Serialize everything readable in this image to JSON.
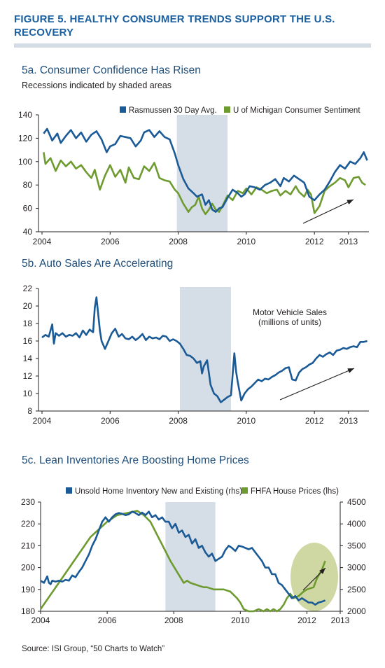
{
  "figure_title": "FIGURE 5. HEALTHY CONSUMER TRENDS SUPPORT THE U.S. RECOVERY",
  "source_text": "Source: ISI Group, “50 Charts to Watch”",
  "colors": {
    "blue": "#1a5a96",
    "green": "#6e9b2f",
    "recession": "#d5dde6",
    "ellipse": "#cfd7a2",
    "title": "#1a5fa0",
    "subtitle": "#1f4e79"
  },
  "chart_data": [
    {
      "id": "5a",
      "type": "line",
      "title": "5a. Consumer Confidence Has Risen",
      "subtitle": "Recessions indicated by shaded areas",
      "xlim": [
        2004,
        2013.6
      ],
      "ylim": [
        40,
        140
      ],
      "yticks": [
        40,
        60,
        80,
        100,
        120,
        140
      ],
      "xticks": [
        2004,
        2006,
        2008,
        2010,
        2012,
        2013
      ],
      "xtick_labels": [
        "2004",
        "2006",
        "2008",
        "2010",
        "2012",
        "2013"
      ],
      "recession": [
        2007.96,
        2009.45
      ],
      "legend_position": "top-right",
      "series": [
        {
          "name": "Rasmussen 30 Day Avg.",
          "color": "#1a5a96",
          "x": [
            2004.05,
            2004.15,
            2004.3,
            2004.45,
            2004.55,
            2004.7,
            2004.85,
            2005.0,
            2005.15,
            2005.3,
            2005.45,
            2005.6,
            2005.75,
            2005.9,
            2006.0,
            2006.15,
            2006.3,
            2006.45,
            2006.6,
            2006.75,
            2006.9,
            2007.0,
            2007.15,
            2007.3,
            2007.45,
            2007.6,
            2007.75,
            2007.9,
            2008.0,
            2008.15,
            2008.3,
            2008.45,
            2008.55,
            2008.7,
            2008.8,
            2008.9,
            2009.0,
            2009.1,
            2009.2,
            2009.3,
            2009.45,
            2009.6,
            2009.75,
            2009.85,
            2009.95,
            2010.1,
            2010.25,
            2010.4,
            2010.55,
            2010.7,
            2010.85,
            2011.0,
            2011.1,
            2011.25,
            2011.4,
            2011.55,
            2011.7,
            2011.85,
            2012.0,
            2012.15,
            2012.3,
            2012.45,
            2012.6,
            2012.75,
            2012.9,
            2013.05,
            2013.2,
            2013.35,
            2013.45,
            2013.55
          ],
          "values": [
            124,
            128,
            118,
            124,
            116,
            122,
            127,
            120,
            125,
            117,
            123,
            126,
            119,
            108,
            113,
            115,
            122,
            121,
            120,
            113,
            118,
            125,
            127,
            121,
            126,
            121,
            119,
            107,
            97,
            85,
            77,
            73,
            70,
            72,
            63,
            67,
            59,
            57,
            60,
            61,
            69,
            76,
            73,
            70,
            72,
            79,
            78,
            76,
            80,
            82,
            85,
            79,
            86,
            83,
            88,
            85,
            82,
            70,
            67,
            72,
            76,
            83,
            91,
            97,
            94,
            100,
            98,
            103,
            108,
            101
          ]
        },
        {
          "name": "U of Michigan Consumer Sentiment",
          "color": "#6e9b2f",
          "x": [
            2004.05,
            2004.1,
            2004.25,
            2004.4,
            2004.55,
            2004.7,
            2004.85,
            2005.0,
            2005.15,
            2005.3,
            2005.45,
            2005.55,
            2005.7,
            2005.85,
            2006.0,
            2006.15,
            2006.3,
            2006.45,
            2006.55,
            2006.7,
            2006.85,
            2007.0,
            2007.15,
            2007.3,
            2007.45,
            2007.6,
            2007.75,
            2007.9,
            2008.0,
            2008.15,
            2008.3,
            2008.4,
            2008.5,
            2008.6,
            2008.7,
            2008.8,
            2008.9,
            2009.0,
            2009.1,
            2009.2,
            2009.3,
            2009.45,
            2009.6,
            2009.75,
            2009.9,
            2010.0,
            2010.15,
            2010.3,
            2010.45,
            2010.6,
            2010.75,
            2010.9,
            2011.0,
            2011.15,
            2011.3,
            2011.45,
            2011.55,
            2011.7,
            2011.8,
            2011.9,
            2012.0,
            2012.15,
            2012.3,
            2012.45,
            2012.6,
            2012.75,
            2012.9,
            2013.0,
            2013.15,
            2013.3,
            2013.4,
            2013.5
          ],
          "values": [
            108,
            98,
            103,
            92,
            101,
            96,
            100,
            94,
            97,
            91,
            86,
            93,
            76,
            88,
            97,
            87,
            93,
            82,
            95,
            86,
            85,
            96,
            92,
            99,
            86,
            84,
            83,
            76,
            73,
            64,
            57,
            61,
            63,
            70,
            60,
            55,
            59,
            64,
            59,
            57,
            62,
            71,
            67,
            75,
            73,
            77,
            72,
            78,
            76,
            73,
            75,
            76,
            71,
            75,
            72,
            79,
            74,
            70,
            76,
            72,
            56,
            62,
            75,
            79,
            82,
            86,
            84,
            78,
            86,
            87,
            82,
            80
          ]
        }
      ]
    },
    {
      "id": "5b",
      "type": "line",
      "title": "5b. Auto Sales Are Accelerating",
      "xlim": [
        2004,
        2013.6
      ],
      "ylim": [
        8,
        22
      ],
      "yticks": [
        8,
        10,
        12,
        14,
        16,
        18,
        20,
        22
      ],
      "xticks": [
        2004,
        2006,
        2008,
        2010,
        2012,
        2013
      ],
      "xtick_labels": [
        "2004",
        "2006",
        "2008",
        "2010",
        "2012",
        "2013"
      ],
      "recession": [
        2008.05,
        2009.55
      ],
      "annotation": "Motor Vehicle Sales\n(millions of units)",
      "series": [
        {
          "name": "Motor Vehicle Sales",
          "color": "#1a5a96",
          "x": [
            2004.0,
            2004.1,
            2004.2,
            2004.3,
            2004.35,
            2004.4,
            2004.5,
            2004.6,
            2004.7,
            2004.8,
            2004.9,
            2005.0,
            2005.1,
            2005.2,
            2005.3,
            2005.4,
            2005.5,
            2005.55,
            2005.6,
            2005.7,
            2005.75,
            2005.85,
            2005.95,
            2006.05,
            2006.15,
            2006.25,
            2006.35,
            2006.45,
            2006.55,
            2006.65,
            2006.75,
            2006.85,
            2006.95,
            2007.05,
            2007.15,
            2007.25,
            2007.35,
            2007.45,
            2007.55,
            2007.65,
            2007.75,
            2007.85,
            2007.95,
            2008.05,
            2008.15,
            2008.25,
            2008.35,
            2008.45,
            2008.55,
            2008.65,
            2008.7,
            2008.75,
            2008.85,
            2008.95,
            2009.05,
            2009.15,
            2009.25,
            2009.35,
            2009.45,
            2009.55,
            2009.65,
            2009.7,
            2009.75,
            2009.85,
            2009.95,
            2010.05,
            2010.15,
            2010.25,
            2010.35,
            2010.45,
            2010.55,
            2010.65,
            2010.75,
            2010.85,
            2010.95,
            2011.05,
            2011.15,
            2011.25,
            2011.35,
            2011.45,
            2011.55,
            2011.65,
            2011.75,
            2011.85,
            2011.95,
            2012.05,
            2012.15,
            2012.25,
            2012.35,
            2012.45,
            2012.55,
            2012.65,
            2012.75,
            2012.85,
            2012.95,
            2013.05,
            2013.15,
            2013.25,
            2013.35,
            2013.45,
            2013.55
          ],
          "values": [
            16.4,
            16.7,
            16.5,
            17.9,
            15.7,
            16.9,
            16.6,
            16.9,
            16.5,
            16.7,
            16.6,
            16.9,
            16.4,
            17.2,
            16.7,
            17.3,
            17.0,
            19.8,
            21.0,
            17.2,
            16.0,
            15.1,
            16.0,
            16.9,
            17.4,
            16.5,
            16.8,
            16.3,
            16.2,
            16.5,
            16.1,
            16.4,
            16.8,
            16.1,
            16.5,
            16.3,
            16.4,
            16.2,
            16.6,
            16.5,
            16.0,
            16.2,
            16.0,
            15.7,
            15.1,
            14.4,
            14.3,
            14.0,
            13.5,
            13.7,
            12.3,
            13.1,
            13.8,
            11.0,
            10.0,
            9.7,
            9.0,
            9.3,
            9.6,
            9.8,
            14.6,
            12.5,
            11.3,
            9.2,
            10.0,
            10.5,
            10.8,
            11.2,
            11.6,
            11.4,
            11.7,
            11.6,
            11.9,
            12.1,
            12.4,
            12.6,
            12.9,
            13.0,
            11.6,
            11.5,
            12.4,
            12.8,
            13.0,
            13.3,
            13.5,
            14.0,
            14.4,
            14.2,
            14.5,
            14.7,
            14.4,
            14.9,
            15.0,
            15.2,
            15.1,
            15.3,
            15.4,
            15.3,
            15.9,
            15.9,
            16.0
          ]
        }
      ]
    },
    {
      "id": "5c",
      "type": "line",
      "title": "5c. Lean Inventories Are Boosting Home Prices",
      "xlim": [
        2004,
        2013
      ],
      "ylim_left": [
        180,
        230
      ],
      "yticks_left": [
        180,
        190,
        200,
        210,
        220,
        230
      ],
      "ylim_right": [
        2000,
        4500
      ],
      "yticks_right": [
        2000,
        2500,
        3000,
        3500,
        4000,
        4500
      ],
      "xticks": [
        2004,
        2006,
        2008,
        2010,
        2012,
        2013
      ],
      "xtick_labels": [
        "2004",
        "2006",
        "2008",
        "2010",
        "2012",
        "2013"
      ],
      "recession": [
        2007.75,
        2009.25
      ],
      "legend_position": "top",
      "series": [
        {
          "name": "Unsold Home Inventory New and Existing (rhs)",
          "color": "#1a5a96",
          "axis": "right",
          "x": [
            2004.0,
            2004.1,
            2004.2,
            2004.25,
            2004.3,
            2004.35,
            2004.45,
            2004.55,
            2004.65,
            2004.75,
            2004.85,
            2004.95,
            2005.05,
            2005.15,
            2005.25,
            2005.35,
            2005.45,
            2005.55,
            2005.65,
            2005.75,
            2005.85,
            2005.95,
            2006.05,
            2006.15,
            2006.25,
            2006.35,
            2006.45,
            2006.55,
            2006.65,
            2006.75,
            2006.85,
            2006.95,
            2007.05,
            2007.15,
            2007.25,
            2007.35,
            2007.45,
            2007.55,
            2007.65,
            2007.75,
            2007.85,
            2007.95,
            2008.05,
            2008.15,
            2008.25,
            2008.35,
            2008.45,
            2008.55,
            2008.65,
            2008.75,
            2008.85,
            2008.95,
            2009.05,
            2009.15,
            2009.25,
            2009.35,
            2009.45,
            2009.55,
            2009.65,
            2009.75,
            2009.85,
            2009.95,
            2010.05,
            2010.15,
            2010.25,
            2010.35,
            2010.45,
            2010.55,
            2010.65,
            2010.75,
            2010.85,
            2010.95,
            2011.05,
            2011.15,
            2011.25,
            2011.35,
            2011.45,
            2011.55,
            2011.65,
            2011.75,
            2011.85,
            2011.95,
            2012.05,
            2012.15,
            2012.25,
            2012.35,
            2012.45,
            2012.55
          ],
          "values": [
            2700,
            2650,
            2800,
            2650,
            2620,
            2700,
            2680,
            2700,
            2680,
            2720,
            2700,
            2820,
            2780,
            2900,
            3000,
            3150,
            3300,
            3500,
            3650,
            3850,
            4050,
            4150,
            4050,
            4150,
            4220,
            4250,
            4230,
            4200,
            4220,
            4280,
            4250,
            4200,
            4260,
            4200,
            4280,
            4150,
            4200,
            4100,
            4150,
            4050,
            4050,
            3900,
            4000,
            3800,
            3850,
            3700,
            3750,
            3550,
            3650,
            3450,
            3500,
            3350,
            3250,
            3320,
            3150,
            3200,
            3250,
            3400,
            3500,
            3450,
            3380,
            3500,
            3480,
            3450,
            3420,
            3450,
            3350,
            3250,
            3150,
            3000,
            3000,
            2850,
            2850,
            2650,
            2600,
            2500,
            2400,
            2300,
            2350,
            2250,
            2300,
            2250,
            2200,
            2200,
            2150,
            2200,
            2220,
            2250
          ]
        },
        {
          "name": "FHFA House Prices (lhs)",
          "color": "#6e9b2f",
          "axis": "left",
          "x": [
            2004.0,
            2004.5,
            2005.0,
            2005.5,
            2006.0,
            2006.3,
            2006.6,
            2006.9,
            2007.1,
            2007.3,
            2007.5,
            2007.7,
            2007.9,
            2008.1,
            2008.3,
            2008.4,
            2008.5,
            2008.7,
            2008.9,
            2009.0,
            2009.2,
            2009.3,
            2009.5,
            2009.7,
            2009.9,
            2010.0,
            2010.1,
            2010.25,
            2010.4,
            2010.55,
            2010.7,
            2010.8,
            2010.9,
            2011.0,
            2011.1,
            2011.2,
            2011.3,
            2011.4,
            2011.5,
            2011.6,
            2011.75,
            2011.9,
            2012.0,
            2012.2,
            2012.3,
            2012.45,
            2012.55
          ],
          "values": [
            181,
            192,
            203,
            214,
            221,
            224,
            225,
            226,
            224,
            221,
            215,
            209,
            203,
            198,
            193,
            194,
            193,
            192,
            191,
            191,
            190,
            190,
            190,
            189,
            186,
            184,
            181,
            180,
            180,
            181,
            180,
            181,
            180,
            181,
            180,
            181,
            183,
            186,
            188,
            186,
            187,
            189,
            190,
            191,
            195,
            199,
            203
          ]
        }
      ]
    }
  ]
}
